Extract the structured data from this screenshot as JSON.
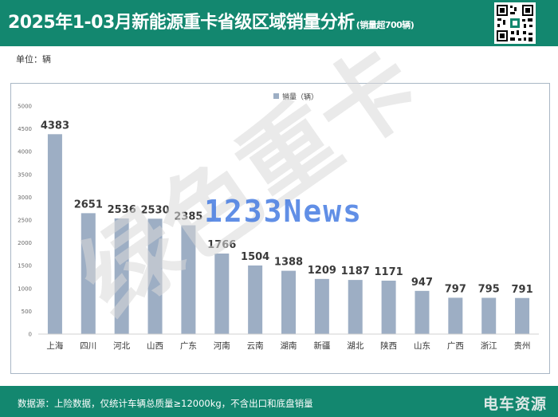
{
  "header": {
    "title": "2025年1-03月新能源重卡省级区域销量分析",
    "subtitle": "(销量超700辆)"
  },
  "unit_label": "单位：辆",
  "footer": {
    "source": "数据源：上险数据，仅统计车辆总质量≥12000kg，不含出口和底盘销量",
    "brand": "电车资源"
  },
  "watermarks": {
    "big": "绿色重卡",
    "news": "1233News"
  },
  "colors": {
    "header_bg": "#13876f",
    "bar": "#9daec4",
    "watermark_grey": "#d9d9d9",
    "watermark_blue": "#3a73e0"
  },
  "chart_data": {
    "type": "bar",
    "categories": [
      "上海",
      "四川",
      "河北",
      "山西",
      "广东",
      "河南",
      "云南",
      "湖南",
      "新疆",
      "湖北",
      "陕西",
      "山东",
      "广西",
      "浙江",
      "贵州"
    ],
    "series": [
      {
        "name": "销量（辆）",
        "values": [
          4383,
          2651,
          2536,
          2530,
          2385,
          1766,
          1504,
          1388,
          1209,
          1187,
          1171,
          947,
          797,
          795,
          791
        ]
      }
    ],
    "data_labels": [
      "4383",
      "2651",
      "2536",
      "2530",
      "2385",
      "1766",
      "1504",
      "1388",
      "1209",
      "1187",
      "1171",
      "947",
      "797",
      "795",
      "791"
    ],
    "ylim": [
      0,
      5000
    ],
    "yticks": [
      0,
      500,
      1000,
      1500,
      2000,
      2500,
      3000,
      3500,
      4000,
      4500,
      5000
    ],
    "legend_position": "top",
    "grid": false
  }
}
